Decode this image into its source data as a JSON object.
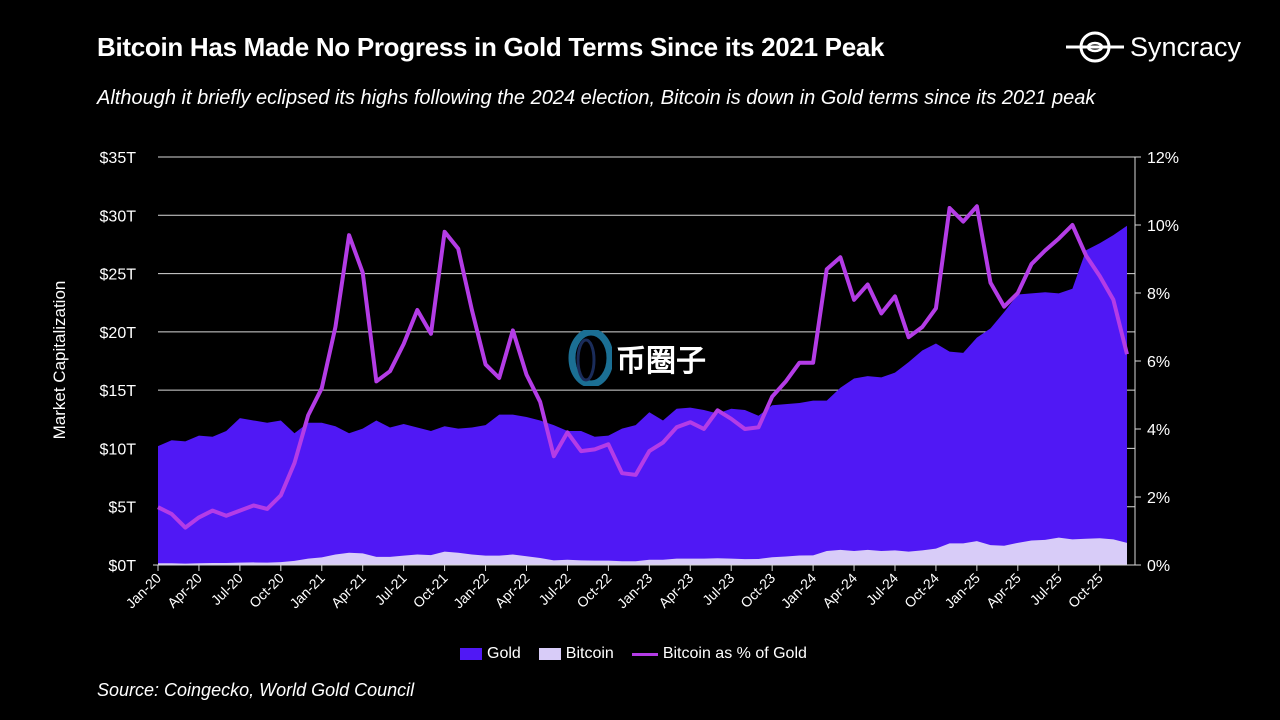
{
  "header": {
    "title": "Bitcoin Has Made No Progress in Gold Terms Since its 2021 Peak",
    "subtitle": "Although it briefly eclipsed its highs following the 2024 election, Bitcoin is down in Gold terms since its 2021 peak",
    "logo_text": "Syncracy"
  },
  "footer": {
    "source": "Source: Coingecko, World Gold Council"
  },
  "watermark": {
    "text": "币圈子"
  },
  "colors": {
    "gold": "#5018f5",
    "bitcoin": "#d8ccf8",
    "ratio": "#b43ce6",
    "background": "#000000",
    "grid": "#d9d9d9"
  },
  "chart_data": {
    "type": "area",
    "title": "Bitcoin Has Made No Progress in Gold Terms Since its 2021 Peak",
    "ylabel": "Market Capitalization",
    "ylim": [
      0,
      35
    ],
    "y2lim": [
      0,
      12
    ],
    "yticks": [
      "$0T",
      "$5T",
      "$10T",
      "$15T",
      "$20T",
      "$25T",
      "$30T",
      "$35T"
    ],
    "y2ticks": [
      "0%",
      "2%",
      "4%",
      "6%",
      "8%",
      "10%",
      "12%"
    ],
    "xticks": [
      "Jan-20",
      "Apr-20",
      "Jul-20",
      "Oct-20",
      "Jan-21",
      "Apr-21",
      "Jul-21",
      "Oct-21",
      "Jan-22",
      "Apr-22",
      "Jul-22",
      "Oct-22",
      "Jan-23",
      "Apr-23",
      "Jul-23",
      "Oct-23",
      "Jan-24",
      "Apr-24",
      "Jul-24",
      "Oct-24",
      "Jan-25",
      "Apr-25",
      "Jul-25",
      "Oct-25"
    ],
    "x_start": "Jan-20",
    "x_end": "Dec-25",
    "grid": true,
    "legend_position": "bottom",
    "series": [
      {
        "name": "Gold",
        "kind": "area",
        "axis": "left",
        "unit": "$T",
        "values": [
          10.2,
          10.7,
          10.6,
          11.1,
          11.0,
          11.5,
          12.6,
          12.4,
          12.2,
          12.4,
          11.3,
          12.2,
          12.2,
          11.9,
          11.3,
          11.7,
          12.4,
          11.8,
          12.1,
          11.8,
          11.5,
          11.9,
          11.7,
          11.8,
          12.0,
          12.9,
          12.9,
          12.7,
          12.4,
          12.0,
          11.5,
          11.5,
          11.0,
          11.1,
          11.7,
          12.0,
          13.1,
          12.4,
          13.4,
          13.5,
          13.3,
          13.0,
          13.4,
          13.3,
          12.8,
          13.7,
          13.8,
          13.9,
          14.1,
          14.1,
          15.2,
          16.0,
          16.2,
          16.1,
          16.5,
          17.4,
          18.4,
          19.0,
          18.3,
          18.2,
          19.5,
          20.3,
          21.7,
          23.2,
          23.3,
          23.4,
          23.3,
          23.7,
          27.0,
          27.6,
          28.3,
          29.1
        ]
      },
      {
        "name": "Bitcoin",
        "kind": "area",
        "axis": "left",
        "unit": "$T",
        "values": [
          0.15,
          0.15,
          0.12,
          0.15,
          0.17,
          0.17,
          0.2,
          0.22,
          0.2,
          0.25,
          0.35,
          0.55,
          0.65,
          0.9,
          1.05,
          1.0,
          0.7,
          0.7,
          0.8,
          0.9,
          0.85,
          1.15,
          1.05,
          0.9,
          0.8,
          0.8,
          0.9,
          0.75,
          0.6,
          0.4,
          0.45,
          0.4,
          0.38,
          0.38,
          0.32,
          0.32,
          0.45,
          0.45,
          0.55,
          0.55,
          0.55,
          0.58,
          0.55,
          0.5,
          0.52,
          0.67,
          0.73,
          0.82,
          0.83,
          1.2,
          1.3,
          1.2,
          1.3,
          1.2,
          1.25,
          1.15,
          1.25,
          1.4,
          1.85,
          1.85,
          2.05,
          1.7,
          1.65,
          1.9,
          2.1,
          2.15,
          2.35,
          2.2,
          2.25,
          2.3,
          2.2,
          1.9
        ]
      },
      {
        "name": "Bitcoin as % of Gold",
        "kind": "line",
        "axis": "right",
        "unit": "%",
        "values": [
          1.7,
          1.5,
          1.1,
          1.4,
          1.6,
          1.45,
          1.6,
          1.75,
          1.65,
          2.05,
          3.0,
          4.4,
          5.2,
          7.0,
          9.7,
          8.6,
          5.4,
          5.7,
          6.5,
          7.5,
          6.8,
          9.8,
          9.3,
          7.5,
          5.9,
          5.5,
          6.9,
          5.6,
          4.8,
          3.2,
          3.9,
          3.35,
          3.4,
          3.55,
          2.7,
          2.65,
          3.35,
          3.6,
          4.05,
          4.2,
          4.0,
          4.55,
          4.3,
          4.0,
          4.05,
          4.95,
          5.4,
          5.95,
          5.95,
          8.7,
          9.05,
          7.8,
          8.25,
          7.4,
          7.9,
          6.7,
          7.0,
          7.55,
          10.5,
          10.1,
          10.55,
          8.3,
          7.6,
          8.0,
          8.85,
          9.25,
          9.6,
          10.0,
          9.1,
          8.5,
          7.8,
          6.2
        ]
      }
    ]
  }
}
